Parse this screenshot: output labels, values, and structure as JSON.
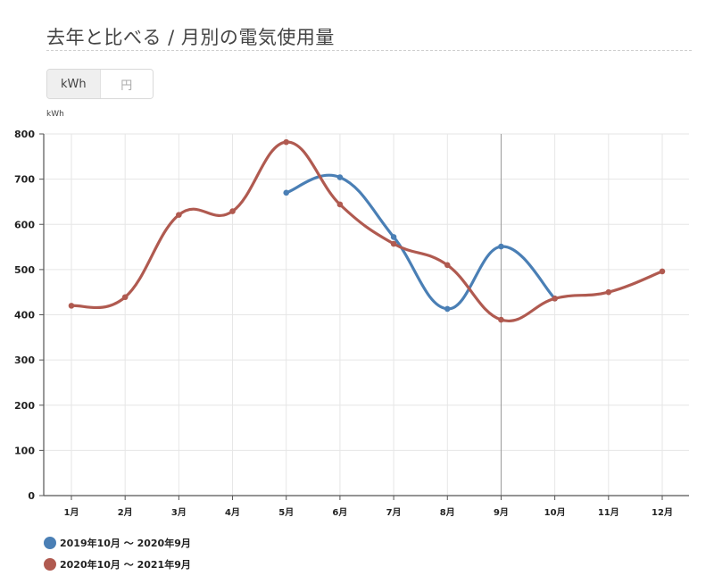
{
  "header": {
    "title": "去年と比べる / 月別の電気使用量"
  },
  "unit_toggle": {
    "options": [
      {
        "label": "kWh",
        "active": true
      },
      {
        "label": "円",
        "active": false
      }
    ]
  },
  "colors": {
    "series_2019": "#4a7fb5",
    "series_2020": "#b05a50",
    "grid": "#e6e6e6",
    "axis": "#555555",
    "crosshair": "#999999"
  },
  "chart_data": {
    "type": "line",
    "title": "去年と比べる / 月別の電気使用量",
    "xlabel": "",
    "ylabel": "kWh",
    "categories": [
      "1月",
      "2月",
      "3月",
      "4月",
      "5月",
      "6月",
      "7月",
      "8月",
      "9月",
      "10月",
      "11月",
      "12月"
    ],
    "yticks": [
      0,
      100,
      200,
      300,
      400,
      500,
      600,
      700,
      800
    ],
    "ylim": [
      0,
      800
    ],
    "grid": true,
    "legend_position": "bottom-left",
    "crosshair_category": "9月",
    "series": [
      {
        "name": "2019年10月 ～ 2020年9月",
        "color": "#4a7fb5",
        "values": [
          null,
          null,
          null,
          null,
          670,
          704,
          572,
          413,
          551,
          436,
          null,
          null
        ]
      },
      {
        "name": "2020年10月 ～ 2021年9月",
        "color": "#b05a50",
        "values": [
          420,
          439,
          621,
          629,
          782,
          644,
          557,
          510,
          389,
          436,
          450,
          496
        ]
      }
    ]
  },
  "legend": {
    "items": [
      {
        "label": "2019年10月 ～ 2020年9月",
        "color": "#4a7fb5"
      },
      {
        "label": "2020年10月 ～ 2021年9月",
        "color": "#b05a50"
      }
    ]
  }
}
